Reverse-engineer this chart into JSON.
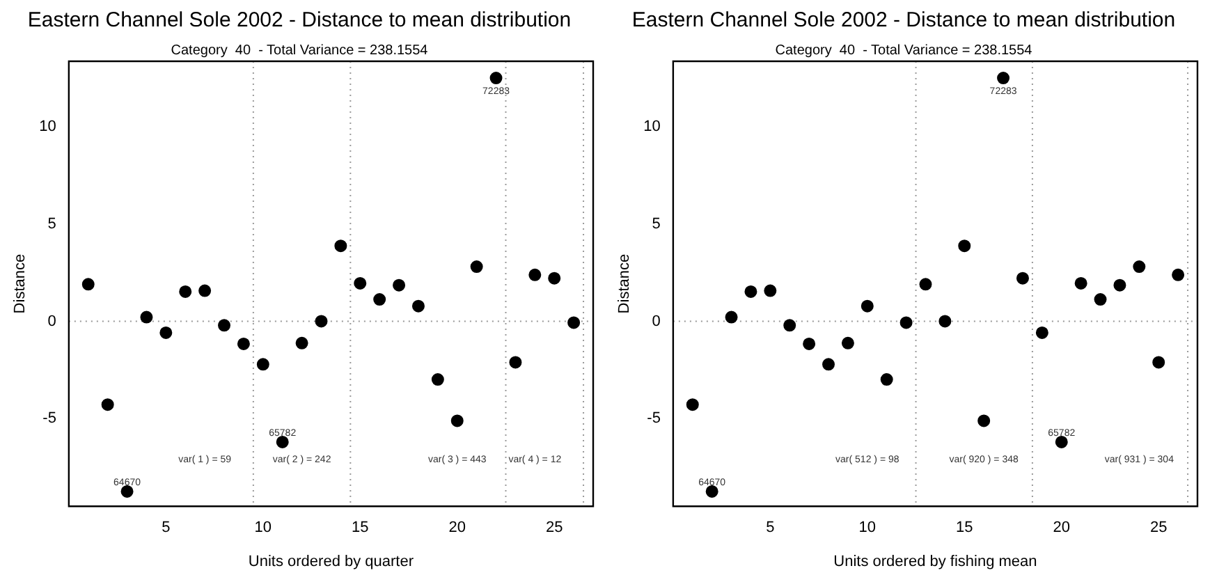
{
  "chart_data": [
    {
      "type": "scatter",
      "title": "Eastern Channel Sole 2002 - Distance to mean distribution",
      "subtitle": "Category  40  - Total Variance = 238.1554",
      "xlabel": "Units ordered by quarter",
      "ylabel": "Distance",
      "x": [
        1,
        2,
        3,
        4,
        5,
        6,
        7,
        8,
        9,
        10,
        11,
        12,
        13,
        14,
        15,
        16,
        17,
        18,
        19,
        20,
        21,
        22,
        23,
        24,
        25,
        26
      ],
      "series": [
        {
          "color": "#000000",
          "values": [
            1.9,
            -4.28,
            -8.74,
            0.21,
            -0.59,
            1.52,
            1.57,
            -0.21,
            -1.16,
            -2.21,
            -6.2,
            -1.12,
            0,
            3.87,
            1.95,
            1.12,
            1.85,
            0.78,
            -2.99,
            -5.11,
            2.8,
            12.49,
            -2.11,
            2.38,
            2.21,
            -0.07
          ]
        }
      ],
      "xlim": [
        0,
        27
      ],
      "ylim": [
        -9.5,
        13.35
      ],
      "xticks": [
        5,
        10,
        15,
        20,
        25
      ],
      "yticks": [
        -5,
        0,
        5,
        10
      ],
      "grid": false,
      "legend": false,
      "marker": "circle",
      "ref_lines": [
        {
          "axis": "y",
          "value": 0,
          "color": "#999999",
          "line_style": "dotted"
        },
        {
          "axis": "x",
          "value": 9.5,
          "color": "#999999",
          "line_style": "dotted"
        },
        {
          "axis": "x",
          "value": 14.5,
          "color": "#999999",
          "line_style": "dotted"
        },
        {
          "axis": "x",
          "value": 22.5,
          "color": "#999999",
          "line_style": "dotted"
        },
        {
          "axis": "x",
          "value": 26.5,
          "color": "#999999",
          "line_style": "dotted"
        }
      ],
      "annotations": [
        {
          "text": "64670",
          "x": 3,
          "y": -8.74
        },
        {
          "text": "65782",
          "x": 11,
          "y": -6.2
        },
        {
          "text": "72283",
          "x": 22,
          "y": 12.49
        },
        "var( 1 ) = 59",
        "var( 2 ) = 242",
        "var( 3 ) = 443",
        "var( 4 ) = 12"
      ]
    },
    {
      "type": "scatter",
      "title": "Eastern Channel Sole 2002 - Distance to mean distribution",
      "subtitle": "Category  40  - Total Variance = 238.1554",
      "xlabel": "Units ordered by fishing mean",
      "ylabel": "Distance",
      "x": [
        1,
        2,
        3,
        4,
        5,
        6,
        7,
        8,
        9,
        10,
        11,
        12,
        13,
        14,
        15,
        16,
        17,
        18,
        19,
        20,
        21,
        22,
        23,
        24,
        25,
        26
      ],
      "series": [
        {
          "color": "#000000",
          "values": [
            -4.28,
            -8.74,
            0.21,
            1.52,
            1.57,
            -0.21,
            -1.16,
            -2.21,
            -1.12,
            0.78,
            -2.99,
            -0.07,
            1.9,
            0,
            3.87,
            -5.11,
            12.49,
            2.21,
            -0.59,
            -6.2,
            1.95,
            1.12,
            1.85,
            2.8,
            -2.11,
            2.38
          ]
        }
      ],
      "xlim": [
        0,
        27
      ],
      "ylim": [
        -9.5,
        13.35
      ],
      "xticks": [
        5,
        10,
        15,
        20,
        25
      ],
      "yticks": [
        -5,
        0,
        5,
        10
      ],
      "grid": false,
      "legend": false,
      "marker": "circle",
      "ref_lines": [
        {
          "axis": "y",
          "value": 0,
          "color": "#999999",
          "line_style": "dotted"
        },
        {
          "axis": "x",
          "value": 12.5,
          "color": "#999999",
          "line_style": "dotted"
        },
        {
          "axis": "x",
          "value": 18.5,
          "color": "#999999",
          "line_style": "dotted"
        },
        {
          "axis": "x",
          "value": 26.5,
          "color": "#999999",
          "line_style": "dotted"
        }
      ],
      "annotations": [
        {
          "text": "64670",
          "x": 2,
          "y": -8.74
        },
        {
          "text": "65782",
          "x": 20,
          "y": -6.2
        },
        {
          "text": "72283",
          "x": 17,
          "y": 12.49
        },
        "var( 512 ) = 98",
        "var( 920 ) = 348",
        "var( 931 ) = 304"
      ]
    }
  ]
}
